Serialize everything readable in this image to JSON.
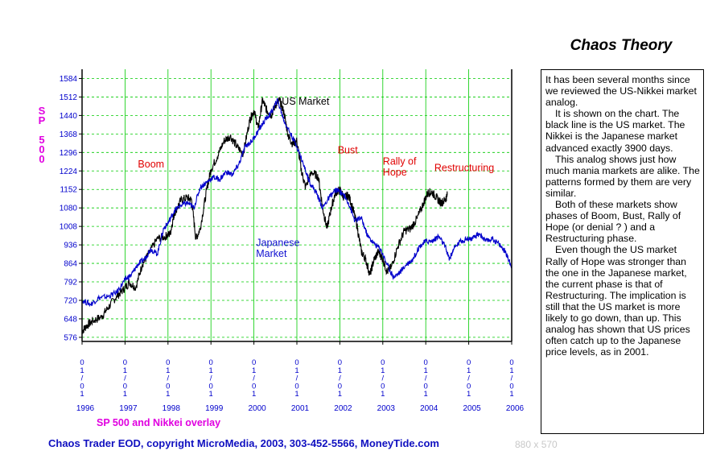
{
  "chart_data": {
    "type": "line",
    "title": "",
    "overlay_label": "SP 500 and Nikkei overlay",
    "ylabel": "SP 500",
    "ylim": [
      560,
      1620
    ],
    "yticks": [
      576,
      648,
      720,
      792,
      864,
      936,
      1008,
      1080,
      1152,
      1224,
      1296,
      1368,
      1440,
      1512,
      1584
    ],
    "xlim": [
      1996.0,
      2006.0
    ],
    "x_tick_date_label": "01/01",
    "x_year_labels": [
      "1996",
      "1997",
      "1998",
      "1999",
      "2000",
      "2001",
      "2002",
      "2003",
      "2004",
      "2005",
      "2006"
    ],
    "grid": true,
    "series": [
      {
        "name": "US Market",
        "color": "#000000",
        "points": [
          [
            1996.0,
            600
          ],
          [
            1996.1,
            620
          ],
          [
            1996.25,
            640
          ],
          [
            1996.45,
            655
          ],
          [
            1996.6,
            690
          ],
          [
            1996.8,
            735
          ],
          [
            1996.95,
            760
          ],
          [
            1997.1,
            790
          ],
          [
            1997.25,
            770
          ],
          [
            1997.4,
            860
          ],
          [
            1997.55,
            900
          ],
          [
            1997.75,
            960
          ],
          [
            1997.95,
            970
          ],
          [
            1998.05,
            980
          ],
          [
            1998.15,
            1060
          ],
          [
            1998.3,
            1110
          ],
          [
            1998.45,
            1120
          ],
          [
            1998.55,
            1110
          ],
          [
            1998.65,
            960
          ],
          [
            1998.75,
            1000
          ],
          [
            1998.9,
            1150
          ],
          [
            1999.0,
            1230
          ],
          [
            1999.15,
            1280
          ],
          [
            1999.3,
            1340
          ],
          [
            1999.45,
            1360
          ],
          [
            1999.6,
            1320
          ],
          [
            1999.75,
            1290
          ],
          [
            1999.9,
            1420
          ],
          [
            2000.0,
            1460
          ],
          [
            2000.1,
            1390
          ],
          [
            2000.2,
            1500
          ],
          [
            2000.3,
            1460
          ],
          [
            2000.4,
            1440
          ],
          [
            2000.5,
            1480
          ],
          [
            2000.6,
            1500
          ],
          [
            2000.7,
            1450
          ],
          [
            2000.8,
            1360
          ],
          [
            2000.9,
            1330
          ],
          [
            2001.0,
            1340
          ],
          [
            2001.1,
            1230
          ],
          [
            2001.2,
            1160
          ],
          [
            2001.35,
            1220
          ],
          [
            2001.5,
            1200
          ],
          [
            2001.6,
            1080
          ],
          [
            2001.7,
            1000
          ],
          [
            2001.8,
            1080
          ],
          [
            2001.9,
            1140
          ],
          [
            2002.0,
            1150
          ],
          [
            2002.1,
            1120
          ],
          [
            2002.2,
            1130
          ],
          [
            2002.3,
            1080
          ],
          [
            2002.4,
            1010
          ],
          [
            2002.5,
            910
          ],
          [
            2002.6,
            880
          ],
          [
            2002.7,
            820
          ],
          [
            2002.8,
            880
          ],
          [
            2002.9,
            910
          ],
          [
            2003.0,
            880
          ],
          [
            2003.1,
            830
          ],
          [
            2003.2,
            850
          ],
          [
            2003.35,
            930
          ],
          [
            2003.5,
            990
          ],
          [
            2003.65,
            1000
          ],
          [
            2003.8,
            1040
          ],
          [
            2003.95,
            1100
          ],
          [
            2004.05,
            1140
          ],
          [
            2004.15,
            1140
          ],
          [
            2004.25,
            1120
          ],
          [
            2004.35,
            1100
          ],
          [
            2004.45,
            1110
          ],
          [
            2004.5,
            1130
          ]
        ]
      },
      {
        "name": "Japanese Market",
        "color": "#0000cc",
        "points": [
          [
            1996.0,
            720
          ],
          [
            1996.2,
            705
          ],
          [
            1996.4,
            730
          ],
          [
            1996.6,
            735
          ],
          [
            1996.8,
            750
          ],
          [
            1997.0,
            800
          ],
          [
            1997.15,
            820
          ],
          [
            1997.3,
            860
          ],
          [
            1997.45,
            880
          ],
          [
            1997.6,
            920
          ],
          [
            1997.75,
            900
          ],
          [
            1997.9,
            1000
          ],
          [
            1998.0,
            1020
          ],
          [
            1998.15,
            1070
          ],
          [
            1998.3,
            1090
          ],
          [
            1998.45,
            1100
          ],
          [
            1998.6,
            1080
          ],
          [
            1998.75,
            1160
          ],
          [
            1998.9,
            1180
          ],
          [
            1999.05,
            1200
          ],
          [
            1999.2,
            1190
          ],
          [
            1999.35,
            1220
          ],
          [
            1999.5,
            1210
          ],
          [
            1999.65,
            1250
          ],
          [
            1999.8,
            1320
          ],
          [
            1999.95,
            1340
          ],
          [
            2000.1,
            1380
          ],
          [
            2000.25,
            1420
          ],
          [
            2000.4,
            1450
          ],
          [
            2000.55,
            1500
          ],
          [
            2000.7,
            1420
          ],
          [
            2000.85,
            1370
          ],
          [
            2001.0,
            1320
          ],
          [
            2001.15,
            1250
          ],
          [
            2001.3,
            1180
          ],
          [
            2001.45,
            1140
          ],
          [
            2001.6,
            1080
          ],
          [
            2001.75,
            1120
          ],
          [
            2001.9,
            1150
          ],
          [
            2002.05,
            1140
          ],
          [
            2002.2,
            1100
          ],
          [
            2002.35,
            1030
          ],
          [
            2002.5,
            1040
          ],
          [
            2002.65,
            970
          ],
          [
            2002.8,
            940
          ],
          [
            2002.95,
            920
          ],
          [
            2003.1,
            860
          ],
          [
            2003.25,
            810
          ],
          [
            2003.4,
            830
          ],
          [
            2003.55,
            860
          ],
          [
            2003.7,
            880
          ],
          [
            2003.85,
            930
          ],
          [
            2004.0,
            950
          ],
          [
            2004.15,
            950
          ],
          [
            2004.3,
            970
          ],
          [
            2004.45,
            930
          ],
          [
            2004.55,
            880
          ],
          [
            2004.65,
            920
          ],
          [
            2004.8,
            950
          ],
          [
            2004.95,
            960
          ],
          [
            2005.1,
            960
          ],
          [
            2005.25,
            980
          ],
          [
            2005.4,
            950
          ],
          [
            2005.55,
            960
          ],
          [
            2005.7,
            940
          ],
          [
            2005.85,
            910
          ],
          [
            2006.0,
            850
          ]
        ]
      }
    ],
    "annotations": [
      {
        "text": "US Market",
        "color": "#000000",
        "x": 2000.65,
        "y": 1482
      },
      {
        "text": "Boom",
        "color": "#e00000",
        "x": 1997.3,
        "y": 1237
      },
      {
        "text": "Bust",
        "color": "#e00000",
        "x": 2001.95,
        "y": 1293
      },
      {
        "text": "Rally of",
        "color": "#e00000",
        "x": 2003.0,
        "y": 1248
      },
      {
        "text": "Hope",
        "color": "#e00000",
        "x": 2003.0,
        "y": 1206
      },
      {
        "text": "Restructuring",
        "color": "#e00000",
        "x": 2004.2,
        "y": 1224
      },
      {
        "text": "Japanese",
        "color": "#1010d0",
        "x": 2000.05,
        "y": 932
      },
      {
        "text": "Market",
        "color": "#1010d0",
        "x": 2000.05,
        "y": 890
      }
    ]
  },
  "sidebar": {
    "title": "Chaos Theory",
    "paragraphs": [
      "It has been several months since we reviewed the US-Nikkei market analog.",
      "It is shown on the chart. The black line is the US market. The Nikkei is the Japanese market advanced exactly 3900 days.",
      "This analog shows just how much mania markets are alike. The patterns formed by them are very similar.",
      "Both of these markets show phases of Boom, Bust, Rally of Hope (or denial ? ) and a Restructuring phase.",
      "Even though the US market Rally of Hope was stronger than the one in the Japanese market, the current phase is that of Restructuring. The implication is still that the US market is more likely to go down, than up. This analog has shown that US prices often catch up to the Japanese price levels, as in 2001."
    ]
  },
  "footer": {
    "copyright": "Chaos Trader EOD, copyright MicroMedia, 2003, 303-452-5566, MoneyTide.com",
    "dimensions": "880 x 570"
  }
}
